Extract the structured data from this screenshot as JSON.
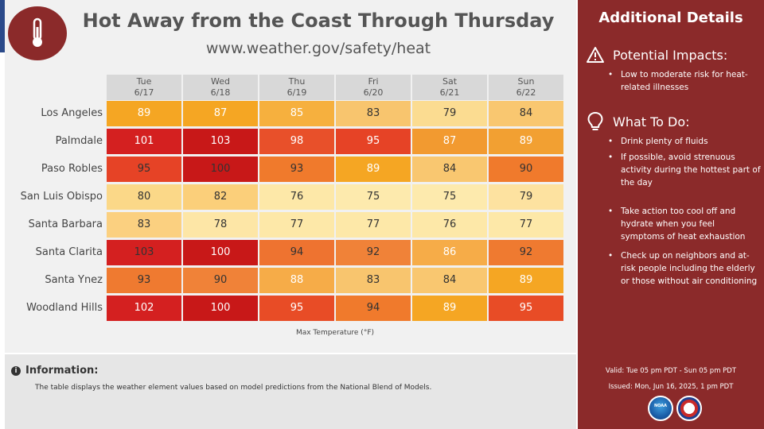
{
  "header": {
    "title": "Hot Away from the Coast Through Thursday",
    "url": "www.weather.gov/safety/heat"
  },
  "days": [
    {
      "name": "Tue",
      "date": "6/17"
    },
    {
      "name": "Wed",
      "date": "6/18"
    },
    {
      "name": "Thu",
      "date": "6/19"
    },
    {
      "name": "Fri",
      "date": "6/20"
    },
    {
      "name": "Sat",
      "date": "6/21"
    },
    {
      "name": "Sun",
      "date": "6/22"
    }
  ],
  "rows": [
    {
      "city": "Los Angeles",
      "values": [
        "89",
        "87",
        "85",
        "83",
        "79",
        "84"
      ]
    },
    {
      "city": "Palmdale",
      "values": [
        "101",
        "103",
        "98",
        "95",
        "87",
        "89"
      ]
    },
    {
      "city": "Paso Robles",
      "values": [
        "95",
        "100",
        "93",
        "89",
        "84",
        "90"
      ]
    },
    {
      "city": "San Luis Obispo",
      "values": [
        "80",
        "82",
        "76",
        "75",
        "75",
        "79"
      ]
    },
    {
      "city": "Santa Barbara",
      "values": [
        "83",
        "78",
        "77",
        "77",
        "76",
        "77"
      ]
    },
    {
      "city": "Santa Clarita",
      "values": [
        "103",
        "100",
        "94",
        "92",
        "86",
        "92"
      ]
    },
    {
      "city": "Santa Ynez",
      "values": [
        "93",
        "90",
        "88",
        "83",
        "84",
        "89"
      ]
    },
    {
      "city": "Woodland Hills",
      "values": [
        "102",
        "100",
        "95",
        "94",
        "89",
        "95"
      ]
    }
  ],
  "cell_colors": [
    [
      "#f5a623",
      "#f5a623",
      "#f6b03e",
      "#f8c56e",
      "#fbdc91",
      "#f9c770"
    ],
    [
      "#d42020",
      "#c81818",
      "#e8502a",
      "#e64326",
      "#f29a30",
      "#f2a032"
    ],
    [
      "#e64326",
      "#c81818",
      "#f07a2c",
      "#f5a623",
      "#f9c770",
      "#f07a2c"
    ],
    [
      "#fbd888",
      "#fbcf7a",
      "#fde8a8",
      "#fdeaad",
      "#fdeaad",
      "#fde2a0"
    ],
    [
      "#fbd080",
      "#fde6a6",
      "#fde8a8",
      "#fde8a8",
      "#fde8a8",
      "#fde8a8"
    ],
    [
      "#d42020",
      "#c81818",
      "#ee7330",
      "#f08238",
      "#f6ac48",
      "#ef7a30"
    ],
    [
      "#ef7a30",
      "#f08238",
      "#f6ac48",
      "#f8c56e",
      "#f9c770",
      "#f5a623"
    ],
    [
      "#d42020",
      "#c81818",
      "#e84c26",
      "#f07a2c",
      "#f5a623",
      "#e84c26"
    ]
  ],
  "text_colors": [
    [
      "#ffffff",
      "#ffffff",
      "#ffffff",
      "#333333",
      "#333333",
      "#333333"
    ],
    [
      "#ffffff",
      "#ffffff",
      "#ffffff",
      "#ffffff",
      "#ffffff",
      "#ffffff"
    ],
    [
      "#333333",
      "#333333",
      "#333333",
      "#ffffff",
      "#333333",
      "#333333"
    ],
    [
      "#333333",
      "#333333",
      "#333333",
      "#333333",
      "#333333",
      "#333333"
    ],
    [
      "#333333",
      "#333333",
      "#333333",
      "#333333",
      "#333333",
      "#333333"
    ],
    [
      "#333333",
      "#ffffff",
      "#333333",
      "#333333",
      "#ffffff",
      "#333333"
    ],
    [
      "#333333",
      "#333333",
      "#ffffff",
      "#333333",
      "#333333",
      "#ffffff"
    ],
    [
      "#ffffff",
      "#ffffff",
      "#ffffff",
      "#333333",
      "#ffffff",
      "#ffffff"
    ]
  ],
  "caption": "Max Temperature (°F)",
  "info": {
    "title": "Information:",
    "icon": "info-icon",
    "text": "The table displays the weather element values based on model predictions from the National Blend of Models."
  },
  "sidebar": {
    "title": "Additional Details",
    "impacts": {
      "heading": "Potential Impacts:",
      "icon": "warning-icon",
      "items": [
        "Low to moderate risk for heat-related illnesses"
      ]
    },
    "todo": {
      "heading": "What To Do:",
      "icon": "lightbulb-icon",
      "items": [
        "Drink plenty of fluids",
        "If possible, avoid strenuous activity during the hottest part of the day",
        "Take action too cool off and hydrate when you feel symptoms of heat exhaustion",
        "Check up on neighbors and at-risk people including the elderly or those without air conditioning"
      ]
    },
    "valid": "Valid: Tue 05 pm PDT - Sun 05 pm PDT",
    "issued": "Issued: Mon, Jun 16, 2025, 1 pm PDT",
    "logo_noaa": "NOAA"
  },
  "colors": {
    "sidebar_bg": "#8b2a2a",
    "header_bg": "#d8d8d8"
  }
}
